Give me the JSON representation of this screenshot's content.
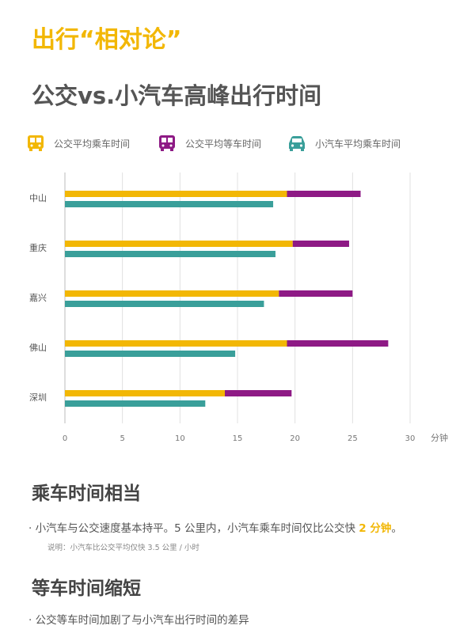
{
  "header": {
    "title": "出行“相对论”",
    "subtitle": "公交vs.小汽车高峰出行时间"
  },
  "legend": [
    {
      "label": "公交平均乘车时间",
      "icon": "bus-icon",
      "color": "#f2b705"
    },
    {
      "label": "公交平均等车时间",
      "icon": "bus-icon",
      "color": "#8e1a85"
    },
    {
      "label": "小汽车平均乘车时间",
      "icon": "car-icon",
      "color": "#3a9f9a"
    }
  ],
  "chart_data": {
    "type": "bar",
    "orientation": "horizontal",
    "stacked_partial": true,
    "categories": [
      "中山",
      "重庆",
      "嘉兴",
      "佛山",
      "深圳"
    ],
    "series": [
      {
        "name": "公交平均乘车时间",
        "values": [
          19.3,
          19.8,
          18.6,
          19.3,
          13.9
        ],
        "color": "#f2b705",
        "stack": "bus"
      },
      {
        "name": "公交平均等车时间",
        "values": [
          6.4,
          4.9,
          6.4,
          8.8,
          5.8
        ],
        "color": "#8e1a85",
        "stack": "bus"
      },
      {
        "name": "小汽车平均乘车时间",
        "values": [
          18.1,
          18.3,
          17.3,
          14.8,
          12.2
        ],
        "color": "#3a9f9a",
        "stack": "car"
      }
    ],
    "x_ticks": [
      "0",
      "5",
      "10",
      "15",
      "20",
      "25",
      "30"
    ],
    "x_unit": "分钟",
    "xlim": [
      0,
      30
    ],
    "grid": "vertical",
    "legend_position": "top"
  },
  "sections": [
    {
      "heading": "乘车时间相当",
      "text_before": "· 小汽车与公交速度基本持平。5 公里内，小汽车乘车时间仅比公交快 ",
      "highlight": "2 分钟",
      "text_after": "。",
      "note": "说明：小汽车比公交平均仅快 3.5 公里 / 小时"
    },
    {
      "heading": "等车时间缩短",
      "text": "· 公交等车时间加剧了与小汽车出行时间的差异"
    }
  ]
}
